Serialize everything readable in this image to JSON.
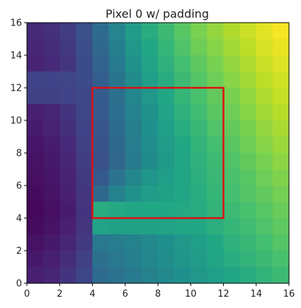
{
  "chart_data": {
    "type": "heatmap",
    "title": "Pixel 0 w/ padding",
    "xlabel": "",
    "ylabel": "",
    "xlim": [
      0,
      16
    ],
    "ylim": [
      0,
      16
    ],
    "grid": false,
    "colormap": "viridis",
    "x_ticks": [
      0,
      2,
      4,
      6,
      8,
      10,
      12,
      14,
      16
    ],
    "y_ticks": [
      0,
      2,
      4,
      6,
      8,
      10,
      12,
      14,
      16
    ],
    "value_range": [
      0,
      1
    ],
    "cell_values_rows_from_top": [
      [
        0.12,
        0.14,
        0.18,
        0.25,
        0.35,
        0.45,
        0.55,
        0.62,
        0.68,
        0.74,
        0.8,
        0.84,
        0.88,
        0.92,
        0.96,
        0.99
      ],
      [
        0.11,
        0.13,
        0.17,
        0.24,
        0.34,
        0.43,
        0.53,
        0.6,
        0.66,
        0.72,
        0.78,
        0.82,
        0.86,
        0.9,
        0.94,
        0.97
      ],
      [
        0.1,
        0.12,
        0.16,
        0.23,
        0.32,
        0.41,
        0.51,
        0.58,
        0.64,
        0.7,
        0.75,
        0.8,
        0.84,
        0.88,
        0.92,
        0.95
      ],
      [
        0.2,
        0.2,
        0.21,
        0.23,
        0.3,
        0.39,
        0.48,
        0.56,
        0.62,
        0.68,
        0.73,
        0.78,
        0.82,
        0.86,
        0.9,
        0.93
      ],
      [
        0.19,
        0.19,
        0.2,
        0.22,
        0.29,
        0.37,
        0.46,
        0.53,
        0.6,
        0.66,
        0.71,
        0.76,
        0.8,
        0.84,
        0.88,
        0.91
      ],
      [
        0.09,
        0.11,
        0.15,
        0.21,
        0.28,
        0.36,
        0.44,
        0.51,
        0.58,
        0.64,
        0.69,
        0.74,
        0.78,
        0.82,
        0.86,
        0.89
      ],
      [
        0.08,
        0.1,
        0.14,
        0.2,
        0.27,
        0.35,
        0.43,
        0.5,
        0.56,
        0.62,
        0.67,
        0.72,
        0.76,
        0.8,
        0.84,
        0.87
      ],
      [
        0.06,
        0.08,
        0.12,
        0.19,
        0.26,
        0.34,
        0.42,
        0.49,
        0.55,
        0.6,
        0.65,
        0.7,
        0.74,
        0.78,
        0.82,
        0.85
      ],
      [
        0.05,
        0.07,
        0.11,
        0.18,
        0.25,
        0.33,
        0.41,
        0.48,
        0.54,
        0.59,
        0.64,
        0.68,
        0.72,
        0.76,
        0.8,
        0.83
      ],
      [
        0.04,
        0.06,
        0.1,
        0.17,
        0.28,
        0.38,
        0.46,
        0.52,
        0.56,
        0.59,
        0.63,
        0.67,
        0.71,
        0.74,
        0.78,
        0.81
      ],
      [
        0.03,
        0.05,
        0.09,
        0.16,
        0.34,
        0.44,
        0.51,
        0.55,
        0.57,
        0.59,
        0.62,
        0.66,
        0.7,
        0.73,
        0.76,
        0.79
      ],
      [
        0.02,
        0.04,
        0.08,
        0.15,
        0.62,
        0.61,
        0.6,
        0.6,
        0.6,
        0.61,
        0.62,
        0.65,
        0.68,
        0.71,
        0.74,
        0.77
      ],
      [
        0.03,
        0.05,
        0.09,
        0.16,
        0.58,
        0.57,
        0.57,
        0.57,
        0.58,
        0.59,
        0.6,
        0.63,
        0.66,
        0.69,
        0.72,
        0.75
      ],
      [
        0.05,
        0.07,
        0.11,
        0.17,
        0.4,
        0.42,
        0.44,
        0.47,
        0.5,
        0.53,
        0.56,
        0.6,
        0.64,
        0.67,
        0.7,
        0.73
      ],
      [
        0.07,
        0.09,
        0.13,
        0.19,
        0.37,
        0.4,
        0.43,
        0.46,
        0.49,
        0.52,
        0.55,
        0.59,
        0.62,
        0.65,
        0.68,
        0.71
      ],
      [
        0.09,
        0.11,
        0.15,
        0.21,
        0.35,
        0.38,
        0.41,
        0.44,
        0.47,
        0.5,
        0.53,
        0.56,
        0.59,
        0.62,
        0.65,
        0.68
      ]
    ],
    "annotations": [
      {
        "type": "rectangle",
        "x_range": [
          4,
          12
        ],
        "y_range": [
          4,
          12
        ],
        "color": "#dd1111"
      }
    ]
  }
}
